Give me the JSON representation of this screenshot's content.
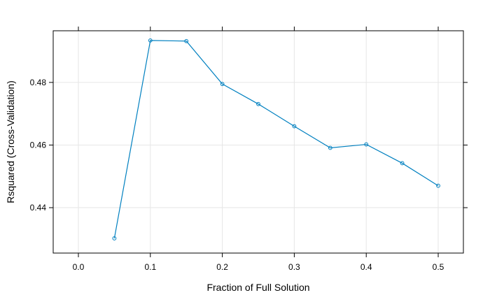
{
  "chart_data": {
    "type": "line",
    "xlabel": "Fraction of Full Solution",
    "ylabel": "Rsquared (Cross-Validation)",
    "xlim": [
      -0.035,
      0.535
    ],
    "ylim": [
      0.4255,
      0.4965
    ],
    "grid": true,
    "x_ticks": [
      0.0,
      0.1,
      0.2,
      0.3,
      0.4,
      0.5
    ],
    "x_tick_labels": [
      "0.0",
      "0.1",
      "0.2",
      "0.3",
      "0.4",
      "0.5"
    ],
    "y_ticks": [
      0.44,
      0.46,
      0.48
    ],
    "y_tick_labels": [
      "0.44",
      "0.46",
      "0.48"
    ],
    "series": [
      {
        "color": "#0080C0",
        "x": [
          0.05,
          0.1,
          0.15,
          0.2,
          0.25,
          0.3,
          0.35,
          0.4,
          0.45,
          0.5
        ],
        "y": [
          0.4302,
          0.4934,
          0.4932,
          0.4795,
          0.4731,
          0.466,
          0.4591,
          0.4602,
          0.4542,
          0.447
        ]
      }
    ]
  }
}
